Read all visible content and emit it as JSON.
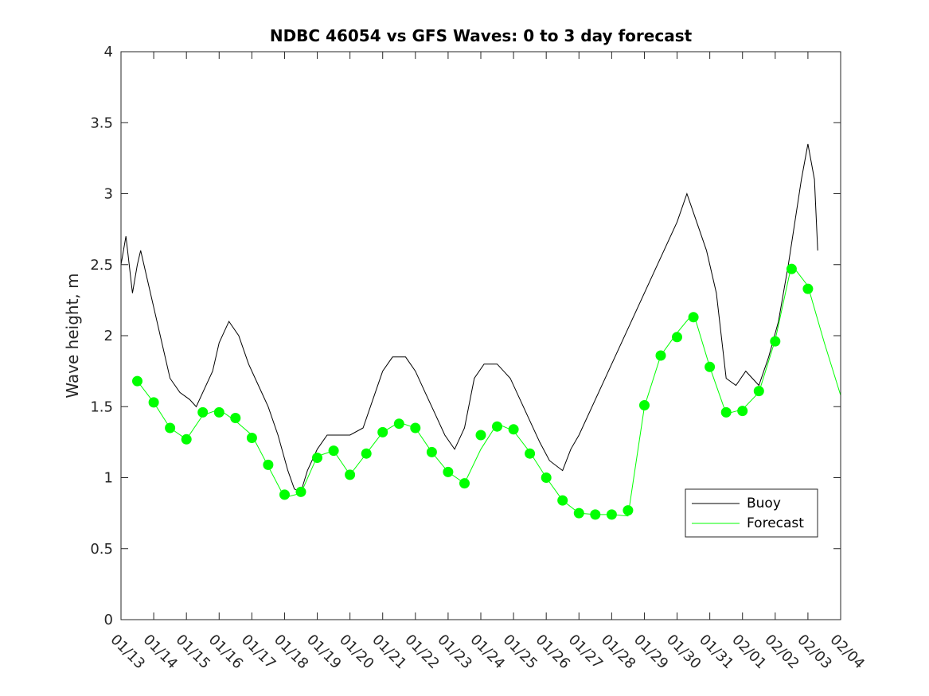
{
  "chart_data": {
    "type": "line",
    "title": "NDBC 46054 vs GFS Waves: 0 to 3 day forecast",
    "xlabel": "",
    "ylabel": "Wave height, m",
    "ylim": [
      0,
      4
    ],
    "yticks": [
      "0",
      "0.5",
      "1",
      "1.5",
      "2",
      "2.5",
      "3",
      "3.5",
      "4"
    ],
    "xlim": [
      0,
      22
    ],
    "xticks": [
      "01/13",
      "01/14",
      "01/15",
      "01/16",
      "01/17",
      "01/18",
      "01/19",
      "01/20",
      "01/21",
      "01/22",
      "01/23",
      "01/24",
      "01/25",
      "01/26",
      "01/27",
      "01/28",
      "01/29",
      "01/30",
      "01/31",
      "02/01",
      "02/02",
      "02/03",
      "02/04"
    ],
    "legend": {
      "position": "bottom-right",
      "entries": [
        "Buoy",
        "Forecast"
      ]
    },
    "colors": {
      "buoy": "#000000",
      "forecast": "#00ff00",
      "axes": "#262626"
    },
    "series": [
      {
        "name": "Buoy",
        "points": [
          [
            0.0,
            2.5
          ],
          [
            0.15,
            2.7
          ],
          [
            0.35,
            2.3
          ],
          [
            0.5,
            2.5
          ],
          [
            0.6,
            2.6
          ],
          [
            0.8,
            2.4
          ],
          [
            1.0,
            2.2
          ],
          [
            1.2,
            2.0
          ],
          [
            1.5,
            1.7
          ],
          [
            1.8,
            1.6
          ],
          [
            2.1,
            1.55
          ],
          [
            2.3,
            1.5
          ],
          [
            2.5,
            1.6
          ],
          [
            2.8,
            1.75
          ],
          [
            3.0,
            1.95
          ],
          [
            3.3,
            2.1
          ],
          [
            3.6,
            2.0
          ],
          [
            3.9,
            1.8
          ],
          [
            4.2,
            1.65
          ],
          [
            4.5,
            1.5
          ],
          [
            4.8,
            1.3
          ],
          [
            5.1,
            1.05
          ],
          [
            5.3,
            0.92
          ],
          [
            5.5,
            0.9
          ],
          [
            5.7,
            1.05
          ],
          [
            6.0,
            1.2
          ],
          [
            6.3,
            1.3
          ],
          [
            6.6,
            1.3
          ],
          [
            7.0,
            1.3
          ],
          [
            7.4,
            1.35
          ],
          [
            7.7,
            1.55
          ],
          [
            8.0,
            1.75
          ],
          [
            8.3,
            1.85
          ],
          [
            8.7,
            1.85
          ],
          [
            9.0,
            1.75
          ],
          [
            9.3,
            1.6
          ],
          [
            9.6,
            1.45
          ],
          [
            9.9,
            1.3
          ],
          [
            10.2,
            1.2
          ],
          [
            10.5,
            1.35
          ],
          [
            10.8,
            1.7
          ],
          [
            11.1,
            1.8
          ],
          [
            11.5,
            1.8
          ],
          [
            11.9,
            1.7
          ],
          [
            12.2,
            1.55
          ],
          [
            12.5,
            1.4
          ],
          [
            12.8,
            1.25
          ],
          [
            13.1,
            1.12
          ],
          [
            13.5,
            1.05
          ],
          [
            13.75,
            1.2
          ],
          [
            14.0,
            1.3
          ],
          [
            17.0,
            2.8
          ],
          [
            17.3,
            3.0
          ],
          [
            17.6,
            2.8
          ],
          [
            17.9,
            2.6
          ],
          [
            18.2,
            2.3
          ],
          [
            18.5,
            1.7
          ],
          [
            18.8,
            1.65
          ],
          [
            19.1,
            1.75
          ],
          [
            19.5,
            1.65
          ],
          [
            19.8,
            1.85
          ],
          [
            20.1,
            2.1
          ],
          [
            20.4,
            2.5
          ],
          [
            20.8,
            3.1
          ],
          [
            21.0,
            3.35
          ],
          [
            21.2,
            3.1
          ],
          [
            21.3,
            2.6
          ]
        ]
      },
      {
        "name": "Forecast",
        "points": [
          [
            0.5,
            1.68
          ],
          [
            1.0,
            1.53
          ],
          [
            1.5,
            1.35
          ],
          [
            2.0,
            1.27
          ],
          [
            2.5,
            1.44
          ],
          [
            3.0,
            1.48
          ],
          [
            3.5,
            1.4
          ],
          [
            4.0,
            1.3
          ],
          [
            4.5,
            1.08
          ],
          [
            5.0,
            0.86
          ],
          [
            5.5,
            0.89
          ],
          [
            6.0,
            1.15
          ],
          [
            6.5,
            1.19
          ],
          [
            7.0,
            1.02
          ],
          [
            7.5,
            1.17
          ],
          [
            8.0,
            1.32
          ],
          [
            8.5,
            1.39
          ],
          [
            9.0,
            1.35
          ],
          [
            9.5,
            1.18
          ],
          [
            10.0,
            1.04
          ],
          [
            10.5,
            0.96
          ],
          [
            11.0,
            1.2
          ],
          [
            11.5,
            1.38
          ],
          [
            12.0,
            1.33
          ],
          [
            12.5,
            1.18
          ],
          [
            13.0,
            1.0
          ],
          [
            13.5,
            0.84
          ],
          [
            14.0,
            0.75
          ],
          [
            14.5,
            0.74
          ],
          [
            15.0,
            0.74
          ],
          [
            15.5,
            0.73
          ],
          [
            16.0,
            1.5
          ],
          [
            16.5,
            1.86
          ],
          [
            17.0,
            2.02
          ],
          [
            17.5,
            2.16
          ],
          [
            18.0,
            1.78
          ],
          [
            18.5,
            1.45
          ],
          [
            19.0,
            1.48
          ],
          [
            19.5,
            1.6
          ],
          [
            20.0,
            1.97
          ],
          [
            20.5,
            2.5
          ],
          [
            21.0,
            2.35
          ],
          [
            21.5,
            1.95
          ],
          [
            22.0,
            1.58
          ]
        ]
      }
    ],
    "forecast_markers": [
      [
        0.5,
        1.68
      ],
      [
        1.0,
        1.53
      ],
      [
        1.5,
        1.35
      ],
      [
        2.0,
        1.27
      ],
      [
        2.5,
        1.46
      ],
      [
        3.0,
        1.46
      ],
      [
        3.5,
        1.42
      ],
      [
        4.0,
        1.28
      ],
      [
        4.5,
        1.09
      ],
      [
        5.0,
        0.88
      ],
      [
        5.5,
        0.9
      ],
      [
        6.0,
        1.14
      ],
      [
        6.5,
        1.19
      ],
      [
        7.0,
        1.02
      ],
      [
        7.5,
        1.17
      ],
      [
        8.0,
        1.32
      ],
      [
        8.5,
        1.38
      ],
      [
        9.0,
        1.35
      ],
      [
        9.5,
        1.18
      ],
      [
        10.0,
        1.04
      ],
      [
        10.5,
        0.96
      ],
      [
        11.0,
        1.3
      ],
      [
        11.5,
        1.36
      ],
      [
        12.0,
        1.34
      ],
      [
        12.5,
        1.17
      ],
      [
        13.0,
        1.0
      ],
      [
        13.5,
        0.84
      ],
      [
        14.0,
        0.75
      ],
      [
        14.5,
        0.74
      ],
      [
        15.0,
        0.74
      ],
      [
        15.5,
        0.77
      ],
      [
        16.0,
        1.51
      ],
      [
        16.5,
        1.86
      ],
      [
        17.0,
        1.99
      ],
      [
        17.5,
        2.13
      ],
      [
        18.0,
        1.78
      ],
      [
        18.5,
        1.46
      ],
      [
        19.0,
        1.47
      ],
      [
        19.5,
        1.61
      ],
      [
        20.0,
        1.96
      ],
      [
        20.5,
        2.47
      ],
      [
        21.0,
        2.33
      ]
    ]
  }
}
